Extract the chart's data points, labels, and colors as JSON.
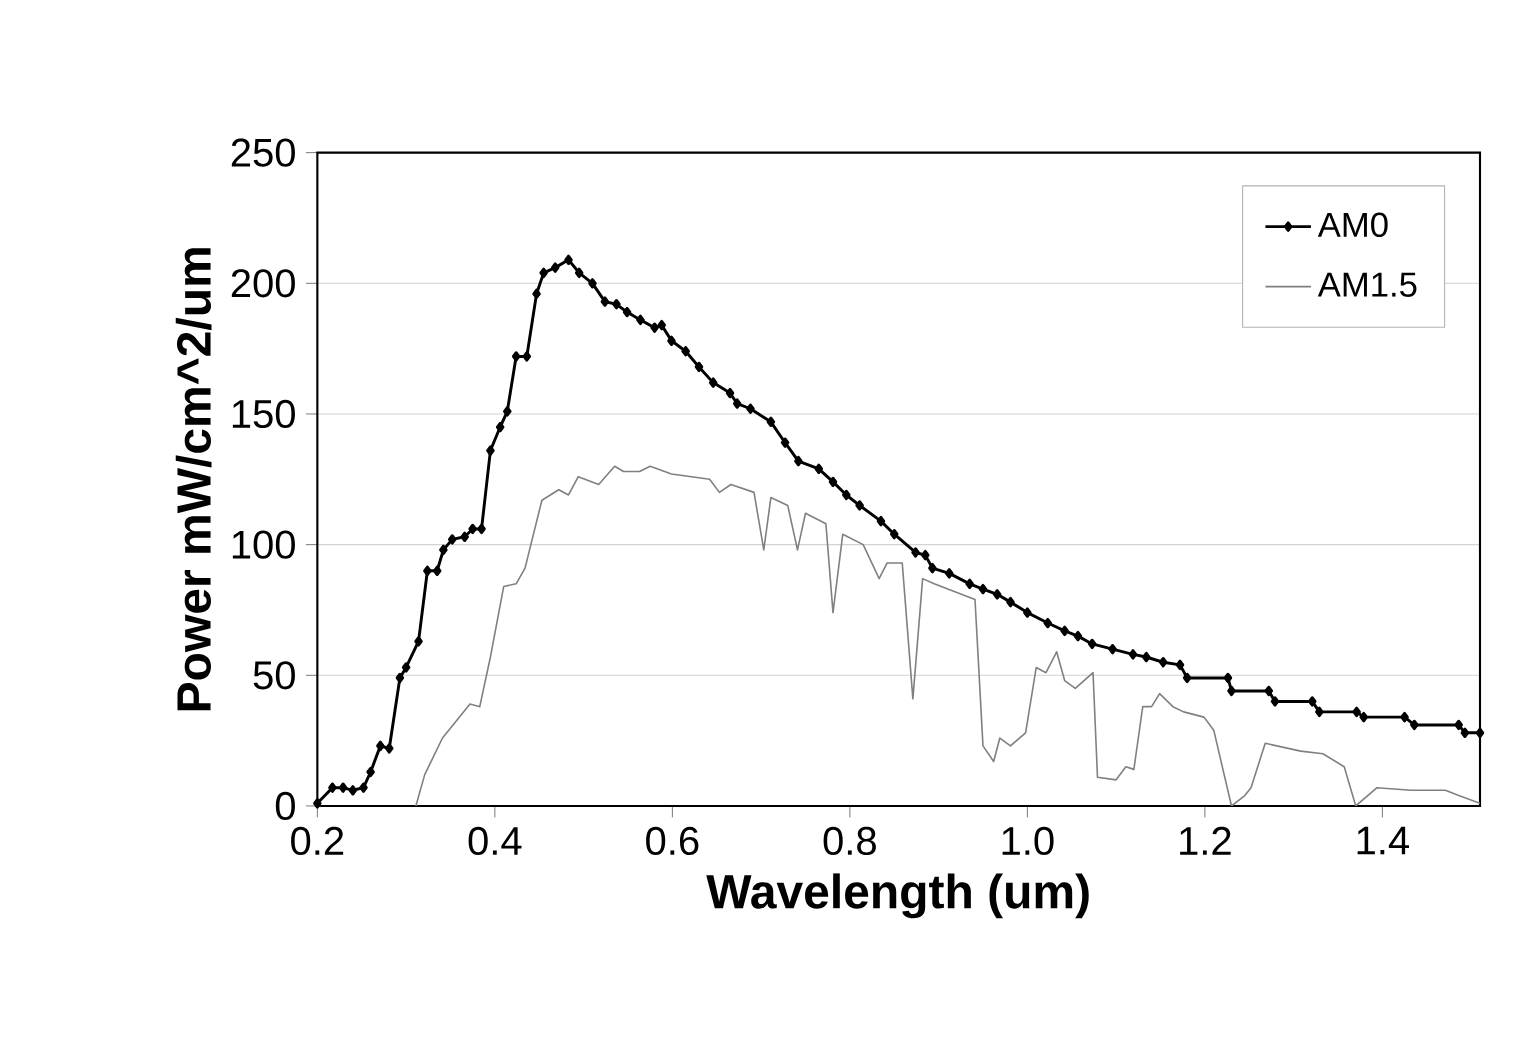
{
  "chart_data": {
    "type": "line",
    "xlabel": "Wavelength (um)",
    "ylabel": "Power mW/cm^2/um",
    "xlim": [
      0.2,
      1.51
    ],
    "xticks": [
      0.2,
      0.4,
      0.6,
      0.8,
      {
        "value": 1.0,
        "label": "1.0"
      },
      1.2,
      1.4
    ],
    "ylim": [
      0,
      250
    ],
    "yticks": [
      0,
      50,
      100,
      150,
      200,
      250
    ],
    "grid": "y",
    "legend": "top right",
    "line_style": "solid",
    "series": [
      {
        "name": "AM0",
        "color": "#000000",
        "marker": "diamond",
        "x": [
          0.2,
          0.217,
          0.229,
          0.24,
          0.252,
          0.26,
          0.271,
          0.281,
          0.293,
          0.3,
          0.314,
          0.324,
          0.335,
          0.342,
          0.352,
          0.366,
          0.375,
          0.385,
          0.395,
          0.406,
          0.414,
          0.424,
          0.436,
          0.447,
          0.455,
          0.468,
          0.483,
          0.495,
          0.51,
          0.524,
          0.537,
          0.549,
          0.564,
          0.58,
          0.588,
          0.599,
          0.615,
          0.63,
          0.646,
          0.665,
          0.673,
          0.688,
          0.711,
          0.727,
          0.742,
          0.765,
          0.781,
          0.796,
          0.811,
          0.835,
          0.85,
          0.874,
          0.885,
          0.893,
          0.912,
          0.935,
          0.95,
          0.966,
          0.981,
          1.0,
          1.023,
          1.042,
          1.057,
          1.073,
          1.096,
          1.119,
          1.134,
          1.153,
          1.172,
          1.18,
          1.226,
          1.23,
          1.272,
          1.279,
          1.321,
          1.329,
          1.371,
          1.379,
          1.425,
          1.436,
          1.486,
          1.493,
          1.51
        ],
        "values": [
          1,
          7,
          7,
          6,
          7,
          13,
          23,
          22,
          49,
          53,
          63,
          90,
          90,
          98,
          102,
          103,
          106,
          106,
          136,
          145,
          151,
          172,
          172,
          196,
          204,
          206,
          209,
          204,
          200,
          193,
          192,
          189,
          186,
          183,
          184,
          178,
          174,
          168,
          162,
          158,
          154,
          152,
          147,
          139,
          132,
          129,
          124,
          119,
          115,
          109,
          104,
          97,
          96,
          91,
          89,
          85,
          83,
          81,
          78,
          74,
          70,
          67,
          65,
          62,
          60,
          58,
          57,
          55,
          54,
          49,
          49,
          44,
          44,
          40,
          40,
          36,
          36,
          34,
          34,
          31,
          31,
          28,
          28
        ]
      },
      {
        "name": "AM1.5",
        "color": "#808080",
        "marker": "none",
        "x": [
          0.311,
          0.321,
          0.341,
          0.372,
          0.383,
          0.395,
          0.41,
          0.424,
          0.434,
          0.453,
          0.472,
          0.483,
          0.494,
          0.517,
          0.535,
          0.545,
          0.563,
          0.575,
          0.599,
          0.642,
          0.653,
          0.666,
          0.692,
          0.703,
          0.711,
          0.73,
          0.741,
          0.75,
          0.773,
          0.781,
          0.792,
          0.815,
          0.833,
          0.842,
          0.859,
          0.871,
          0.882,
          0.895,
          0.941,
          0.95,
          0.962,
          0.969,
          0.981,
          0.998,
          1.01,
          1.021,
          1.033,
          1.042,
          1.054,
          1.074,
          1.079,
          1.1,
          1.111,
          1.12,
          1.13,
          1.14,
          1.149,
          1.164,
          1.176,
          1.199,
          1.21,
          1.23,
          1.245,
          1.252,
          1.268,
          1.308,
          1.333,
          1.357,
          1.37,
          1.394,
          1.432,
          1.471,
          1.486,
          1.51
        ],
        "values": [
          0,
          12,
          26,
          39,
          38,
          57,
          84,
          85,
          91,
          117,
          121,
          119,
          126,
          123,
          130,
          128,
          128,
          130,
          127,
          125,
          120,
          123,
          120,
          98,
          118,
          115,
          98,
          112,
          108,
          74,
          104,
          100,
          87,
          93,
          93,
          41,
          87,
          85,
          79,
          23,
          17,
          26,
          23,
          28,
          53,
          51,
          59,
          48,
          45,
          51,
          11,
          10,
          15,
          14,
          38,
          38,
          43,
          38,
          36,
          34,
          29,
          0,
          4,
          7,
          24,
          21,
          20,
          15,
          0,
          7,
          6,
          6,
          4,
          1
        ]
      }
    ]
  }
}
